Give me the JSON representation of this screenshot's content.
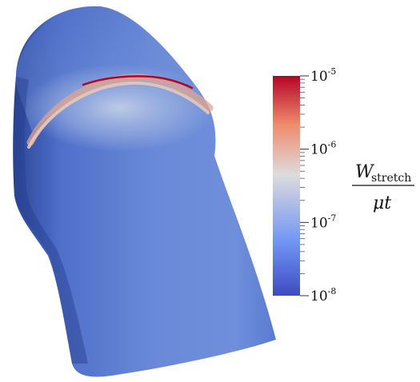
{
  "colorbar": {
    "tick_labels": [
      {
        "base": "10",
        "exp": "-5",
        "log_value": -5
      },
      {
        "base": "10",
        "exp": "-6",
        "log_value": -6
      },
      {
        "base": "10",
        "exp": "-7",
        "log_value": -7
      },
      {
        "base": "10",
        "exp": "-8",
        "log_value": -8
      }
    ],
    "range_log": [
      -8,
      -5
    ],
    "scale": "log",
    "colormap": "coolwarm",
    "colors": {
      "low": "#3b4cc0",
      "mid_low": "#7396f5",
      "mid": "#dddcdc",
      "mid_high": "#f08a6c",
      "high": "#b40426"
    }
  },
  "quantity_label": {
    "numerator_symbol": "W",
    "numerator_subscript": "stretch",
    "denominator": "μt"
  },
  "surface": {
    "colors": {
      "base": "#5e7fd6",
      "highlight": "#b6c6e4",
      "shadow": "#2f4a9c",
      "crease": "#b40426"
    }
  }
}
